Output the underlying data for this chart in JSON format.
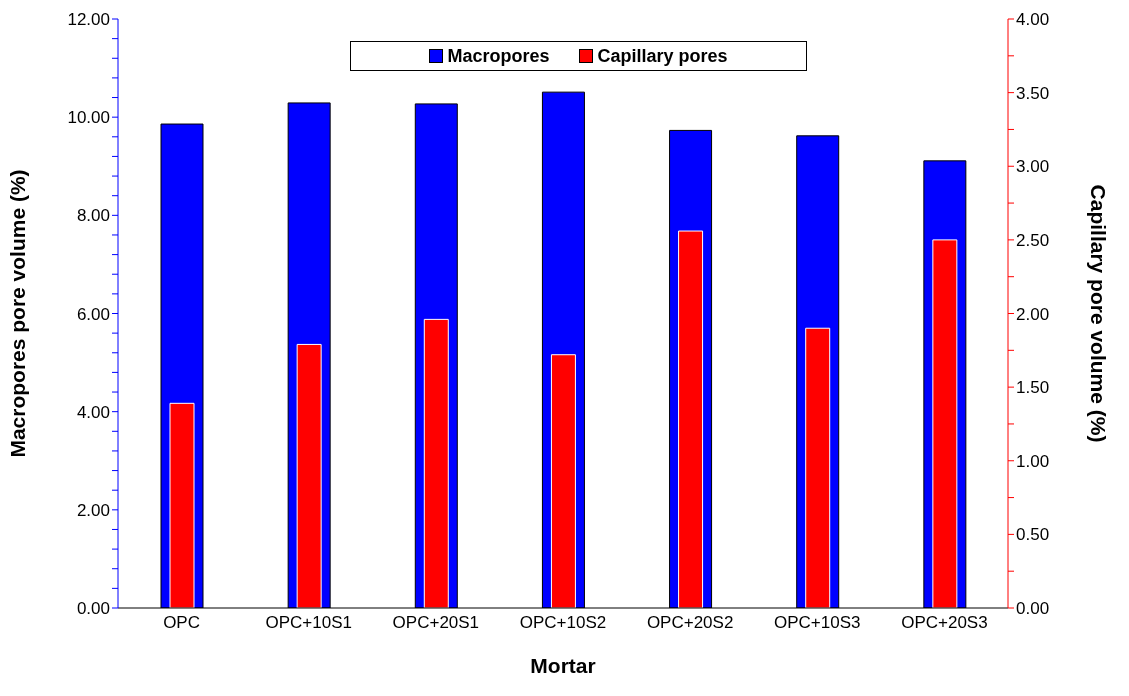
{
  "chart_data": {
    "type": "bar",
    "xlabel": "Mortar",
    "ylabel": "Macropores pore volume (%)",
    "y2label": "Capillary pore volume (%)",
    "categories": [
      "OPC",
      "OPC+10S1",
      "OPC+20S1",
      "OPC+10S2",
      "OPC+20S2",
      "OPC+10S3",
      "OPC+20S3"
    ],
    "series": [
      {
        "name": "Macropores",
        "color": "#0000ff",
        "values": [
          9.86,
          10.29,
          10.27,
          10.51,
          9.73,
          9.62,
          9.11
        ]
      },
      {
        "name": "Capillary pores",
        "color": "#ff0000",
        "axis": "y2",
        "values": [
          1.39,
          1.79,
          1.96,
          1.72,
          2.56,
          1.9,
          2.5
        ]
      }
    ],
    "ylim": [
      0,
      12
    ],
    "yticks": [
      {
        "value": 0,
        "label": "0.00"
      },
      {
        "value": 0.4,
        "label": null
      },
      {
        "value": 0.8,
        "label": null
      },
      {
        "value": 1.2,
        "label": null
      },
      {
        "value": 1.6,
        "label": null
      },
      {
        "value": 2,
        "label": "2.00"
      },
      {
        "value": 2.4,
        "label": null
      },
      {
        "value": 2.8,
        "label": null
      },
      {
        "value": 3.2,
        "label": null
      },
      {
        "value": 3.6,
        "label": null
      },
      {
        "value": 4,
        "label": "4.00"
      },
      {
        "value": 4.4,
        "label": null
      },
      {
        "value": 4.8,
        "label": null
      },
      {
        "value": 5.2,
        "label": null
      },
      {
        "value": 5.6,
        "label": null
      },
      {
        "value": 6,
        "label": "6.00"
      },
      {
        "value": 6.4,
        "label": null
      },
      {
        "value": 6.8,
        "label": null
      },
      {
        "value": 7.2,
        "label": null
      },
      {
        "value": 7.6,
        "label": null
      },
      {
        "value": 8,
        "label": "8.00"
      },
      {
        "value": 8.4,
        "label": null
      },
      {
        "value": 8.8,
        "label": null
      },
      {
        "value": 9.2,
        "label": null
      },
      {
        "value": 9.6,
        "label": null
      },
      {
        "value": 10,
        "label": "10.00"
      },
      {
        "value": 10.4,
        "label": null
      },
      {
        "value": 10.8,
        "label": null
      },
      {
        "value": 11.2,
        "label": null
      },
      {
        "value": 11.6,
        "label": null
      },
      {
        "value": 12,
        "label": "12.00"
      }
    ],
    "y2lim": [
      0,
      4
    ],
    "y2ticks": [
      {
        "value": 0,
        "label": "0.00"
      },
      {
        "value": 0.25,
        "label": null
      },
      {
        "value": 0.5,
        "label": "0.50"
      },
      {
        "value": 0.75,
        "label": null
      },
      {
        "value": 1,
        "label": "1.00"
      },
      {
        "value": 1.25,
        "label": null
      },
      {
        "value": 1.5,
        "label": "1.50"
      },
      {
        "value": 1.75,
        "label": null
      },
      {
        "value": 2,
        "label": "2.00"
      },
      {
        "value": 2.25,
        "label": null
      },
      {
        "value": 2.5,
        "label": "2.50"
      },
      {
        "value": 2.75,
        "label": null
      },
      {
        "value": 3,
        "label": "3.00"
      },
      {
        "value": 3.25,
        "label": null
      },
      {
        "value": 3.5,
        "label": "3.50"
      },
      {
        "value": 3.75,
        "label": null
      },
      {
        "value": 4,
        "label": "4.00"
      }
    ],
    "legend": "top"
  }
}
